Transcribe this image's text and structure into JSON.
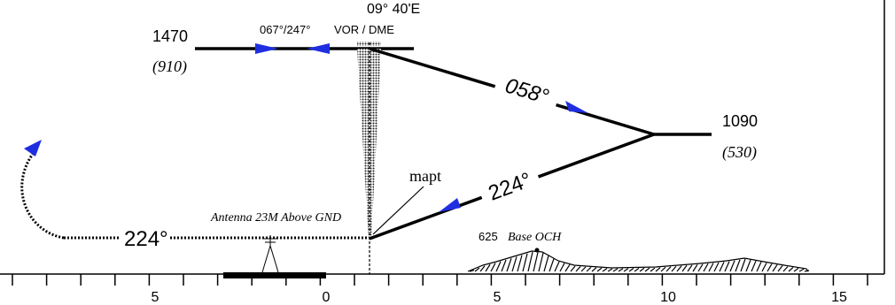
{
  "header": {
    "variation": "09° 40'E",
    "radial_label": "067°/247°",
    "navaid_label": "VOR / DME"
  },
  "altitudes": {
    "left_alt": "1470",
    "left_height": "(910)",
    "right_alt": "1090",
    "right_height": "(530)"
  },
  "tracks": {
    "outbound_track": "058°",
    "inbound_track": "224°",
    "missed_track": "224°"
  },
  "annotations": {
    "mapt": "mapt",
    "antenna": "Antenna 23M Above GND",
    "och_value": "625",
    "och_label": "Base OCH"
  },
  "scale": {
    "labels": [
      "5",
      "0",
      "5",
      "10",
      "15"
    ]
  },
  "colors": {
    "ink": "#000000",
    "arrow": "#1f2fe0"
  },
  "icons": [
    "arrow-icon",
    "antenna-icon",
    "vor-dme-icon"
  ]
}
